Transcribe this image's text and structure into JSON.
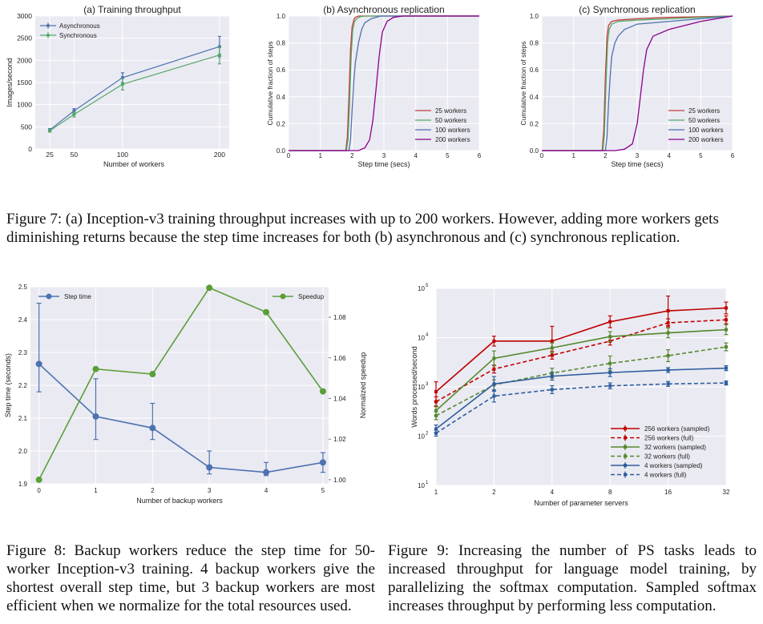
{
  "figure7": {
    "panels": [
      {
        "id": "a",
        "chart_data": {
          "type": "line",
          "title": "(a) Training throughput",
          "xlabel": "Number of workers",
          "ylabel": "Images/second",
          "x": [
            25,
            50,
            100,
            200
          ],
          "xticks": [
            "25",
            "50",
            "100",
            "200"
          ],
          "yticks": [
            "0",
            "500",
            "1000",
            "1500",
            "2000",
            "2500",
            "3000"
          ],
          "xlim": [
            10,
            210
          ],
          "ylim": [
            0,
            3000
          ],
          "legend_position": "top-left",
          "series": [
            {
              "name": "Asynchronous",
              "color": "#4C72B0",
              "values": [
                430,
                860,
                1610,
                2310
              ],
              "err": [
                30,
                50,
                110,
                230
              ]
            },
            {
              "name": "Synchronous",
              "color": "#55A868",
              "values": [
                410,
                780,
                1460,
                2120
              ],
              "err": [
                30,
                60,
                130,
                200
              ]
            }
          ]
        }
      },
      {
        "id": "b",
        "chart_data": {
          "type": "line",
          "title": "(b) Asynchronous replication",
          "xlabel": "Step time (secs)",
          "ylabel": "Cumulative fraction of steps",
          "xticks": [
            "0",
            "1",
            "2",
            "3",
            "4",
            "5",
            "6"
          ],
          "yticks": [
            "0.0",
            "0.2",
            "0.4",
            "0.6",
            "0.8",
            "1.0"
          ],
          "xlim": [
            0,
            6
          ],
          "ylim": [
            0,
            1
          ],
          "legend_position": "bottom-right",
          "series": [
            {
              "name": "25 workers",
              "color": "#C03D3E",
              "x": [
                0,
                1.8,
                1.85,
                1.9,
                1.95,
                2.0,
                2.05,
                2.1,
                2.2,
                2.3,
                6
              ],
              "y": [
                0,
                0,
                0.1,
                0.4,
                0.75,
                0.92,
                0.97,
                0.99,
                1.0,
                1.0,
                1.0
              ]
            },
            {
              "name": "50 workers",
              "color": "#55A868",
              "x": [
                0,
                1.82,
                1.87,
                1.92,
                1.97,
                2.02,
                2.08,
                2.15,
                2.25,
                2.4,
                6
              ],
              "y": [
                0,
                0,
                0.08,
                0.35,
                0.7,
                0.9,
                0.96,
                0.98,
                0.995,
                1.0,
                1.0
              ]
            },
            {
              "name": "100 workers",
              "color": "#4C72B0",
              "x": [
                0,
                1.9,
                1.95,
                2.0,
                2.05,
                2.1,
                2.2,
                2.3,
                2.4,
                2.6,
                2.9,
                6
              ],
              "y": [
                0,
                0,
                0.08,
                0.3,
                0.5,
                0.65,
                0.8,
                0.9,
                0.95,
                0.98,
                1.0,
                1.0
              ]
            },
            {
              "name": "200 workers",
              "color": "#8B008B",
              "x": [
                0,
                2.2,
                2.4,
                2.55,
                2.65,
                2.75,
                2.85,
                2.95,
                3.1,
                3.3,
                3.6,
                6
              ],
              "y": [
                0,
                0,
                0.02,
                0.08,
                0.22,
                0.45,
                0.7,
                0.88,
                0.96,
                0.99,
                1.0,
                1.0
              ]
            }
          ]
        }
      },
      {
        "id": "c",
        "chart_data": {
          "type": "line",
          "title": "(c) Synchronous replication",
          "xlabel": "Step time (secs)",
          "ylabel": "Cumulative fraction of steps",
          "xticks": [
            "0",
            "1",
            "2",
            "3",
            "4",
            "5",
            "6"
          ],
          "yticks": [
            "0.0",
            "0.2",
            "0.4",
            "0.6",
            "0.8",
            "1.0"
          ],
          "xlim": [
            0,
            6
          ],
          "ylim": [
            0,
            1
          ],
          "legend_position": "bottom-right",
          "series": [
            {
              "name": "25 workers",
              "color": "#C03D3E",
              "x": [
                0,
                1.9,
                1.95,
                2.0,
                2.05,
                2.1,
                2.2,
                2.4,
                3.0,
                4.0,
                5.0,
                6
              ],
              "y": [
                0,
                0,
                0.15,
                0.55,
                0.85,
                0.93,
                0.96,
                0.97,
                0.98,
                0.99,
                0.995,
                1.0
              ]
            },
            {
              "name": "50 workers",
              "color": "#55A868",
              "x": [
                0,
                1.92,
                1.97,
                2.02,
                2.07,
                2.12,
                2.2,
                2.4,
                3.0,
                4.0,
                5.0,
                6
              ],
              "y": [
                0,
                0,
                0.12,
                0.5,
                0.8,
                0.9,
                0.94,
                0.96,
                0.97,
                0.98,
                0.99,
                1.0
              ]
            },
            {
              "name": "100 workers",
              "color": "#4C72B0",
              "x": [
                0,
                2.0,
                2.05,
                2.1,
                2.15,
                2.2,
                2.3,
                2.4,
                2.6,
                3.0,
                4.0,
                5.0,
                6
              ],
              "y": [
                0,
                0,
                0.1,
                0.35,
                0.55,
                0.7,
                0.8,
                0.85,
                0.9,
                0.94,
                0.96,
                0.98,
                1.0
              ]
            },
            {
              "name": "200 workers",
              "color": "#8B008B",
              "x": [
                0,
                2.3,
                2.6,
                2.85,
                3.0,
                3.1,
                3.2,
                3.3,
                3.5,
                4.0,
                4.5,
                5.0,
                5.5,
                6
              ],
              "y": [
                0,
                0,
                0.01,
                0.05,
                0.2,
                0.4,
                0.6,
                0.75,
                0.85,
                0.9,
                0.93,
                0.96,
                0.98,
                1.0
              ]
            }
          ]
        }
      }
    ],
    "caption": "Figure 7: (a) Inception-v3 training throughput increases with up to 200 workers. However, adding more workers gets diminishing returns because the step time increases for both (b) asynchronous and (c) synchronous replication."
  },
  "figure8": {
    "chart_data": {
      "type": "line",
      "xlabel": "Number of backup workers",
      "ylabel": "Step time (seconds)",
      "ylabel_right": "Normalized speedup",
      "categories": [
        "0",
        "1",
        "2",
        "3",
        "4",
        "5"
      ],
      "x": [
        0,
        1,
        2,
        3,
        4,
        5
      ],
      "xlim": [
        -0.15,
        5.1
      ],
      "ylim": [
        1.9,
        2.5
      ],
      "ylim_right": [
        0.998,
        1.095
      ],
      "yticks": [
        "1.9",
        "2.0",
        "2.1",
        "2.2",
        "2.3",
        "2.4",
        "2.5"
      ],
      "yticks_right": [
        "1.00",
        "1.02",
        "1.04",
        "1.06",
        "1.08"
      ],
      "series": [
        {
          "name": "Step time",
          "color": "#4C72B0",
          "axis": "left",
          "values": [
            2.265,
            2.105,
            2.07,
            1.95,
            1.935,
            1.965
          ],
          "err_low": [
            0.085,
            0.07,
            0.035,
            0.02,
            0.01,
            0.03
          ],
          "err_high": [
            0.185,
            0.115,
            0.075,
            0.05,
            0.03,
            0.03
          ],
          "legend_position": "top-left"
        },
        {
          "name": "Speedup",
          "color": "#5B9E38",
          "axis": "right",
          "values": [
            1.0,
            1.0545,
            1.052,
            1.0945,
            1.0825,
            1.0435
          ],
          "legend_position": "top-right"
        }
      ]
    },
    "caption": "Figure 8: Backup workers reduce the step time for 50-worker Inception-v3 training. 4 backup workers give the shortest overall step time, but 3 backup workers are most efficient when we normalize for the total resources used."
  },
  "figure9": {
    "chart_data": {
      "type": "line",
      "xlabel": "Number of parameter servers",
      "ylabel": "Words processed/second",
      "x": [
        1,
        2,
        4,
        8,
        16,
        32
      ],
      "xticks": [
        "1",
        "2",
        "4",
        "8",
        "16",
        "32"
      ],
      "yscale": "log",
      "ylim": [
        10,
        100000
      ],
      "yticks_base": "10",
      "yticks_exp": [
        "1",
        "2",
        "3",
        "4",
        "5"
      ],
      "legend_position": "bottom-right",
      "series": [
        {
          "name": "256 workers (sampled)",
          "color": "#C00000",
          "dash": false,
          "values": [
            800,
            8500,
            8500,
            21000,
            35000,
            40000
          ],
          "err": [
            0.2,
            0.1,
            0.3,
            0.12,
            0.3,
            0.12
          ]
        },
        {
          "name": "256 workers (full)",
          "color": "#C00000",
          "dash": true,
          "values": [
            500,
            2300,
            4400,
            8500,
            20000,
            23000
          ],
          "err": [
            0.1,
            0.08,
            0.08,
            0.08,
            0.08,
            0.08
          ]
        },
        {
          "name": "32 workers (sampled)",
          "color": "#55882C",
          "dash": false,
          "values": [
            330,
            3800,
            6200,
            10500,
            12500,
            14500
          ],
          "err": [
            0.1,
            0.15,
            0.1,
            0.1,
            0.1,
            0.1
          ]
        },
        {
          "name": "32 workers (full)",
          "color": "#55882C",
          "dash": true,
          "values": [
            260,
            1100,
            1900,
            3000,
            4300,
            6500
          ],
          "err": [
            0.08,
            0.1,
            0.1,
            0.15,
            0.12,
            0.08
          ]
        },
        {
          "name": "4 workers (sampled)",
          "color": "#2E5D9E",
          "dash": false,
          "values": [
            140,
            1150,
            1650,
            1950,
            2200,
            2400
          ],
          "err": [
            0.08,
            0.15,
            0.08,
            0.08,
            0.05,
            0.05
          ]
        },
        {
          "name": "4 workers (full)",
          "color": "#2E5D9E",
          "dash": true,
          "values": [
            115,
            650,
            880,
            1050,
            1150,
            1200
          ],
          "err": [
            0.06,
            0.12,
            0.08,
            0.06,
            0.05,
            0.04
          ]
        }
      ]
    },
    "caption": "Figure 9: Increasing the number of PS tasks leads to increased throughput for language model training, by parallelizing the softmax computation. Sampled softmax increases throughput by performing less computation."
  }
}
